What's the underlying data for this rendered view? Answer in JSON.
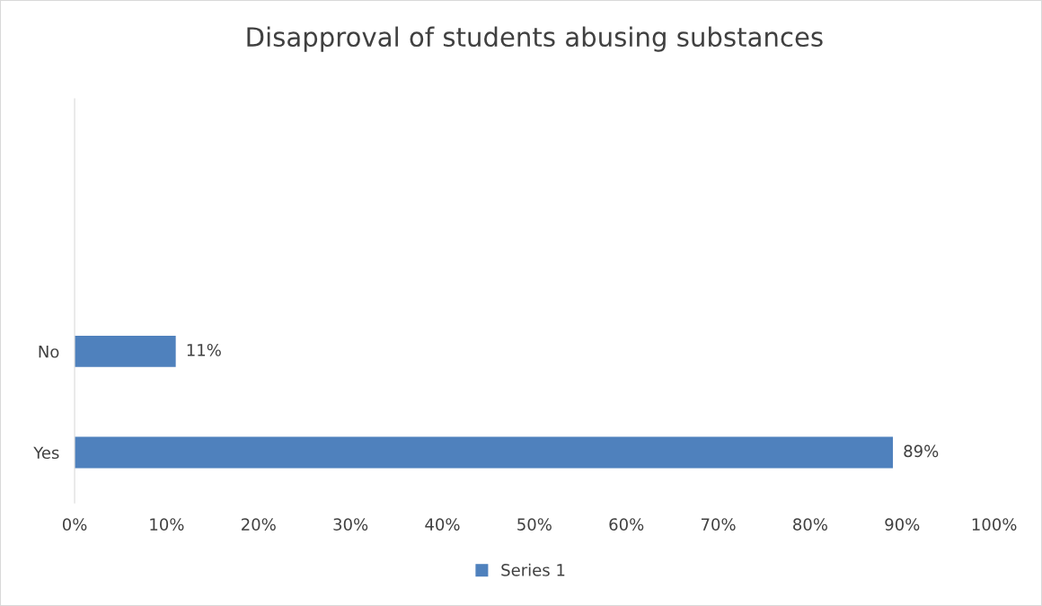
{
  "chart_data": {
    "type": "bar",
    "orientation": "horizontal",
    "title": "Disapproval of students abusing substances",
    "categories": [
      null,
      null,
      "No",
      "Yes"
    ],
    "series": [
      {
        "name": "Series 1",
        "color": "#4f81bd",
        "values": [
          null,
          null,
          11,
          89
        ]
      }
    ],
    "value_labels": [
      null,
      null,
      "11%",
      "89%"
    ],
    "xlim": [
      0,
      100
    ],
    "xticks": [
      {
        "value": 0,
        "label": "0%"
      },
      {
        "value": 10,
        "label": "10%"
      },
      {
        "value": 20,
        "label": "20%"
      },
      {
        "value": 30,
        "label": "30%"
      },
      {
        "value": 40,
        "label": "40%"
      },
      {
        "value": 50,
        "label": "50%"
      },
      {
        "value": 60,
        "label": "60%"
      },
      {
        "value": 70,
        "label": "70%"
      },
      {
        "value": 80,
        "label": "80%"
      },
      {
        "value": 90,
        "label": "90%"
      },
      {
        "value": 100,
        "label": "100%"
      }
    ],
    "grid": false,
    "legend": "bottom"
  }
}
